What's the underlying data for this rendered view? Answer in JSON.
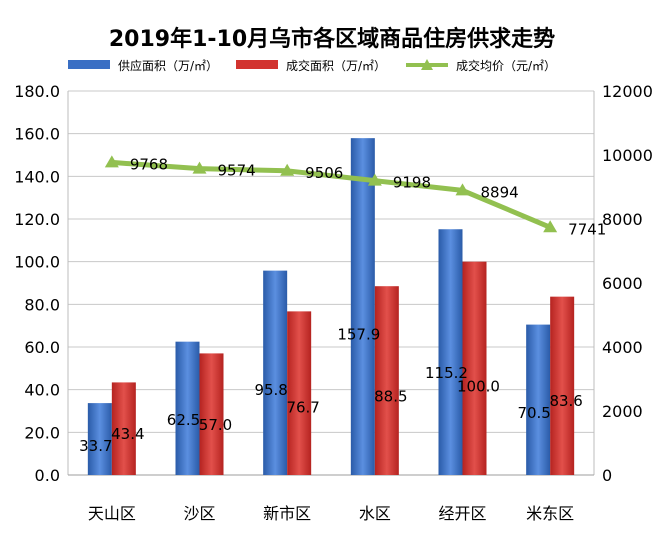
{
  "chart_data": {
    "type": "bar",
    "title": "2019年1-10月乌市各区域商品住房供求走势",
    "categories": [
      "天山区",
      "沙区",
      "新市区",
      "水区",
      "经开区",
      "米东区"
    ],
    "series": [
      {
        "name": "供应面积（万/㎡）",
        "kind": "bar",
        "axis": "left",
        "color": "#3a6fc4",
        "values": [
          33.7,
          62.5,
          95.8,
          157.9,
          115.2,
          70.5
        ]
      },
      {
        "name": "成交面积（万/㎡）",
        "kind": "bar",
        "axis": "left",
        "color": "#d2332f",
        "values": [
          43.4,
          57.0,
          76.7,
          88.5,
          100.0,
          83.6
        ]
      },
      {
        "name": "成交均价（元/㎡）",
        "kind": "line",
        "axis": "right",
        "color": "#92c050",
        "values": [
          9768,
          9574,
          9506,
          9198,
          8894,
          7741
        ]
      }
    ],
    "y_left": {
      "min": 0,
      "max": 180,
      "step": 20,
      "labels": [
        "0.0",
        "20.0",
        "40.0",
        "60.0",
        "80.0",
        "100.0",
        "120.0",
        "140.0",
        "160.0",
        "180.0"
      ]
    },
    "y_right": {
      "min": 0,
      "max": 12000,
      "step": 2000,
      "labels": [
        "0",
        "2000",
        "4000",
        "6000",
        "8000",
        "10000",
        "12000"
      ]
    },
    "bar_labels": {
      "供应面积（万/㎡）": [
        "33.7",
        "62.5",
        "95.8",
        "157.9",
        "115.2",
        "70.5"
      ],
      "成交面积（万/㎡）": [
        "43.4",
        "57.0",
        "76.7",
        "88.5",
        "100.0",
        "83.6"
      ]
    },
    "line_labels": [
      "9768",
      "9574",
      "9506",
      "9198",
      "8894",
      "7741"
    ],
    "grid": true,
    "legend": "top"
  }
}
